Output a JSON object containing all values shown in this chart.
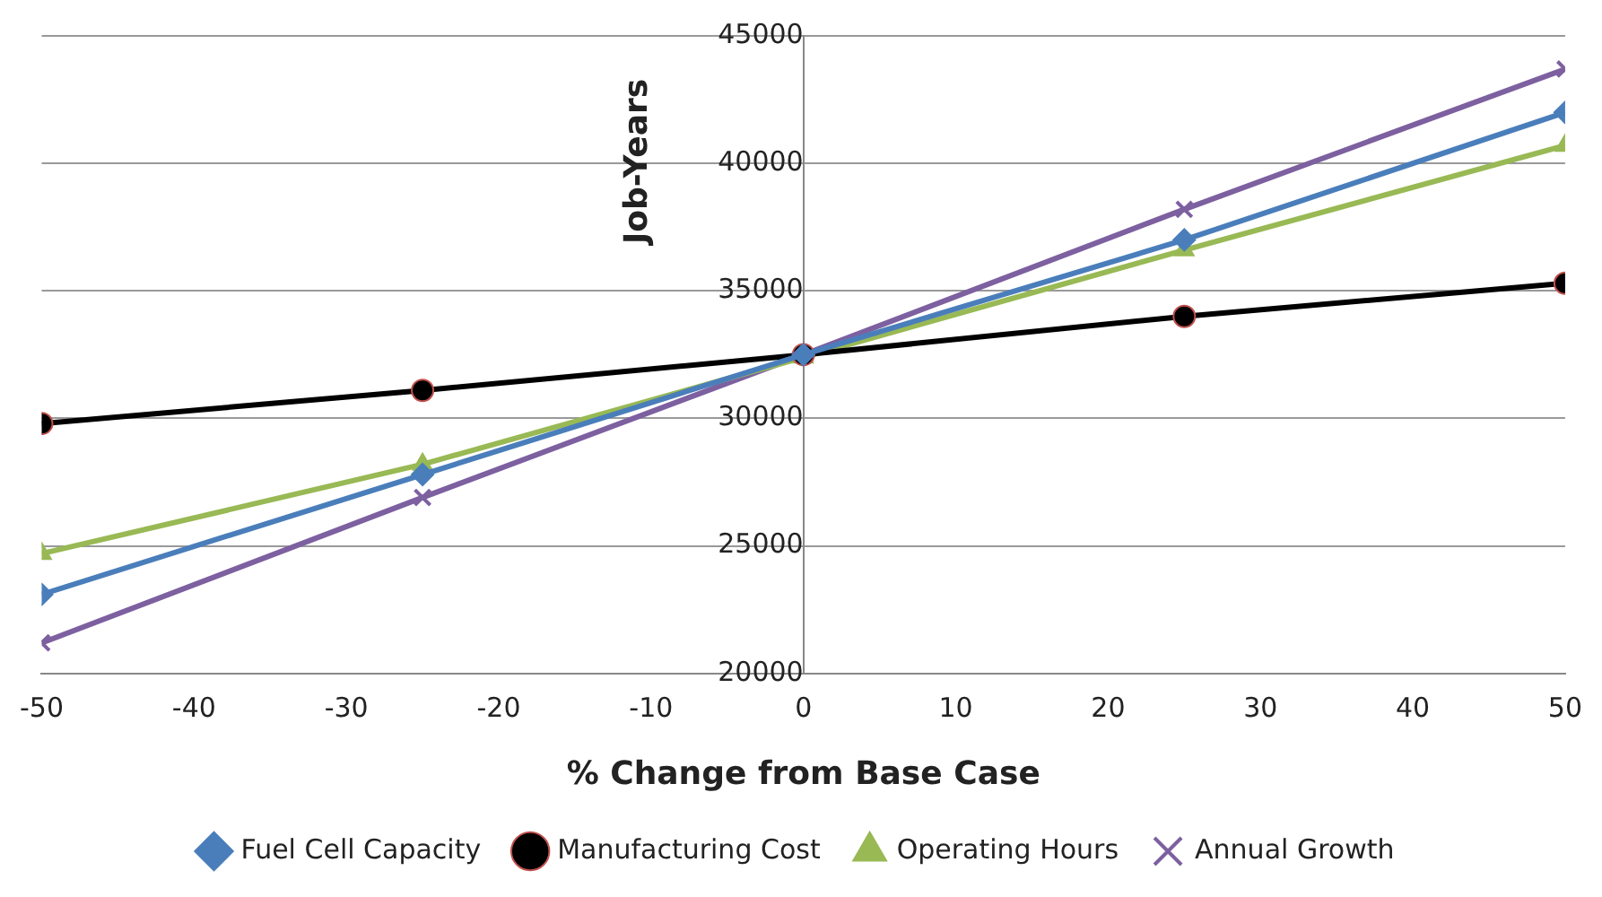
{
  "chart_data": {
    "type": "line",
    "xlabel": "% Change from Base Case",
    "ylabel": "Job-Years",
    "x": [
      -50,
      -25,
      0,
      25,
      50
    ],
    "xlim": [
      -50,
      50
    ],
    "xticks": [
      -50,
      -40,
      -30,
      -20,
      -10,
      0,
      10,
      20,
      30,
      40,
      50
    ],
    "ylim": [
      20000,
      45000
    ],
    "yticks": [
      20000,
      25000,
      30000,
      35000,
      40000,
      45000
    ],
    "grid": "y",
    "legend": "bottom",
    "series": [
      {
        "name": "Fuel Cell Capacity",
        "color": "#4a7ebb",
        "marker": "diamond",
        "values": [
          23100,
          27800,
          32500,
          37000,
          42000
        ]
      },
      {
        "name": "Manufacturing Cost",
        "color": "#000000",
        "marker": "circle",
        "values": [
          29800,
          31100,
          32500,
          34000,
          35300
        ]
      },
      {
        "name": "Operating Hours",
        "color": "#98b954",
        "marker": "triangle",
        "values": [
          24700,
          28200,
          32400,
          36600,
          40700
        ]
      },
      {
        "name": "Annual Growth",
        "color": "#7d60a0",
        "marker": "cross",
        "values": [
          21200,
          26900,
          32500,
          38200,
          43700
        ]
      }
    ]
  }
}
